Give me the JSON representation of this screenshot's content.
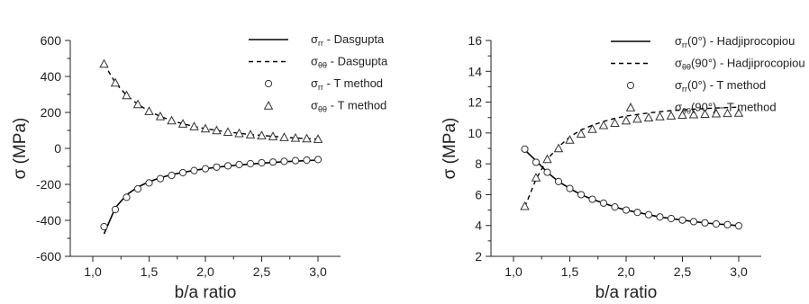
{
  "chart_data": [
    {
      "type": "line",
      "xlabel": "b/a ratio",
      "ylabel": "σ (MPa)",
      "xlim": [
        0.8,
        3.2
      ],
      "ylim": [
        -600,
        600
      ],
      "x_ticks": [
        "1,0",
        "1,5",
        "2,0",
        "2,5",
        "3,0"
      ],
      "x_tick_values": [
        1.0,
        1.5,
        2.0,
        2.5,
        3.0
      ],
      "y_ticks": [
        "600",
        "400",
        "200",
        "0",
        "-200",
        "-400",
        "-600"
      ],
      "y_tick_values": [
        600,
        400,
        200,
        0,
        -200,
        -400,
        -600
      ],
      "legend_position": "top-right",
      "series": [
        {
          "name": "σrr - Dasgupta",
          "legend": {
            "sym": "σ",
            "sub": "rr",
            "suffix": " - Dasgupta"
          },
          "style": "solid",
          "x": [
            1.1,
            1.2,
            1.3,
            1.4,
            1.5,
            1.6,
            1.7,
            1.8,
            1.9,
            2.0,
            2.1,
            2.2,
            2.3,
            2.4,
            2.5,
            2.6,
            2.7,
            2.8,
            2.9,
            3.0
          ],
          "values": [
            -475,
            -330,
            -258,
            -215,
            -185,
            -163,
            -146,
            -133,
            -122,
            -113,
            -105,
            -98,
            -92,
            -87,
            -82,
            -78,
            -74,
            -71,
            -68,
            -65
          ]
        },
        {
          "name": "σθθ - Dasgupta",
          "legend": {
            "sym": "σ",
            "sub": "θθ",
            "suffix": " - Dasgupta"
          },
          "style": "dashed",
          "x": [
            1.1,
            1.2,
            1.3,
            1.4,
            1.5,
            1.6,
            1.7,
            1.8,
            1.9,
            2.0,
            2.1,
            2.2,
            2.3,
            2.4,
            2.5,
            2.6,
            2.7,
            2.8,
            2.9,
            3.0
          ],
          "values": [
            470,
            365,
            295,
            245,
            207,
            178,
            155,
            137,
            122,
            110,
            100,
            91,
            84,
            77,
            72,
            67,
            62,
            58,
            55,
            52
          ]
        },
        {
          "name": "σrr - T method",
          "legend": {
            "sym": "σ",
            "sub": "rr",
            "suffix": " - T method"
          },
          "style": "circle",
          "x": [
            1.1,
            1.2,
            1.3,
            1.4,
            1.5,
            1.6,
            1.7,
            1.8,
            1.9,
            2.0,
            2.1,
            2.2,
            2.3,
            2.4,
            2.5,
            2.6,
            2.7,
            2.8,
            2.9,
            3.0
          ],
          "values": [
            -435,
            -340,
            -272,
            -225,
            -192,
            -168,
            -150,
            -135,
            -123,
            -113,
            -104,
            -97,
            -90,
            -85,
            -80,
            -76,
            -72,
            -68,
            -65,
            -62
          ]
        },
        {
          "name": "σθθ - T method",
          "legend": {
            "sym": "σ",
            "sub": "θθ",
            "suffix": " - T method"
          },
          "style": "triangle",
          "x": [
            1.1,
            1.2,
            1.3,
            1.4,
            1.5,
            1.6,
            1.7,
            1.8,
            1.9,
            2.0,
            2.1,
            2.2,
            2.3,
            2.4,
            2.5,
            2.6,
            2.7,
            2.8,
            2.9,
            3.0
          ],
          "values": [
            470,
            365,
            295,
            245,
            207,
            178,
            155,
            137,
            122,
            110,
            100,
            91,
            84,
            77,
            72,
            67,
            62,
            58,
            55,
            52
          ]
        }
      ]
    },
    {
      "type": "line",
      "xlabel": "b/a ratio",
      "ylabel": "σ (MPa)",
      "xlim": [
        0.8,
        3.2
      ],
      "ylim": [
        2,
        16
      ],
      "x_ticks": [
        "1,0",
        "1,5",
        "2,0",
        "2,5",
        "3,0"
      ],
      "x_tick_values": [
        1.0,
        1.5,
        2.0,
        2.5,
        3.0
      ],
      "y_ticks": [
        "16",
        "14",
        "12",
        "10",
        "8",
        "6",
        "4",
        "2"
      ],
      "y_tick_values": [
        16,
        14,
        12,
        10,
        8,
        6,
        4,
        2
      ],
      "legend_position": "top-right",
      "series": [
        {
          "name": "σrr(0°) - Hadjiprocopiou",
          "legend": {
            "sym": "σ",
            "sub": "rr",
            "suffix": "(0°) - Hadjiprocopiou"
          },
          "style": "solid",
          "x": [
            1.1,
            1.2,
            1.3,
            1.4,
            1.5,
            1.6,
            1.7,
            1.8,
            1.9,
            2.0,
            2.1,
            2.2,
            2.3,
            2.4,
            2.5,
            2.6,
            2.7,
            2.8,
            2.9,
            3.0
          ],
          "values": [
            8.9,
            8.2,
            7.45,
            6.85,
            6.4,
            6.0,
            5.7,
            5.45,
            5.2,
            5.0,
            4.85,
            4.7,
            4.55,
            4.45,
            4.35,
            4.25,
            4.17,
            4.1,
            4.05,
            3.98
          ]
        },
        {
          "name": "σθθ(90°) - Hadjiprocopiou",
          "legend": {
            "sym": "σ",
            "sub": "θθ",
            "suffix": "(90°) - Hadjiprocopiou"
          },
          "style": "dashed",
          "x": [
            1.1,
            1.2,
            1.3,
            1.4,
            1.5,
            1.6,
            1.7,
            1.8,
            1.9,
            2.0,
            2.1,
            2.2,
            2.3,
            2.4,
            2.5,
            2.6,
            2.7,
            2.8,
            2.9,
            3.0
          ],
          "values": [
            5.2,
            7.0,
            8.3,
            9.1,
            9.75,
            10.2,
            10.5,
            10.75,
            10.95,
            11.1,
            11.2,
            11.3,
            11.38,
            11.45,
            11.5,
            11.55,
            11.58,
            11.62,
            11.65,
            11.67
          ]
        },
        {
          "name": "σrr(0°) - T method",
          "legend": {
            "sym": "σ",
            "sub": "rr",
            "suffix": "(0°) - T method"
          },
          "style": "circle",
          "x": [
            1.1,
            1.2,
            1.3,
            1.4,
            1.5,
            1.6,
            1.7,
            1.8,
            1.9,
            2.0,
            2.1,
            2.2,
            2.3,
            2.4,
            2.5,
            2.6,
            2.7,
            2.8,
            2.9,
            3.0
          ],
          "values": [
            8.95,
            8.1,
            7.45,
            6.85,
            6.4,
            6.0,
            5.7,
            5.45,
            5.2,
            5.0,
            4.85,
            4.7,
            4.55,
            4.45,
            4.35,
            4.25,
            4.17,
            4.1,
            4.05,
            3.98
          ]
        },
        {
          "name": "σθθ(90°) - T method",
          "legend": {
            "sym": "σ",
            "sub": "θθ",
            "suffix": "(90°) - T method"
          },
          "style": "triangle",
          "x": [
            1.1,
            1.2,
            1.3,
            1.4,
            1.5,
            1.6,
            1.7,
            1.8,
            1.9,
            2.0,
            2.1,
            2.2,
            2.3,
            2.4,
            2.5,
            2.6,
            2.7,
            2.8,
            2.9,
            3.0
          ],
          "values": [
            5.25,
            7.1,
            8.3,
            9.0,
            9.55,
            9.95,
            10.25,
            10.5,
            10.65,
            10.8,
            10.92,
            11.0,
            11.07,
            11.12,
            11.17,
            11.2,
            11.23,
            11.26,
            11.28,
            11.3
          ]
        }
      ]
    }
  ]
}
